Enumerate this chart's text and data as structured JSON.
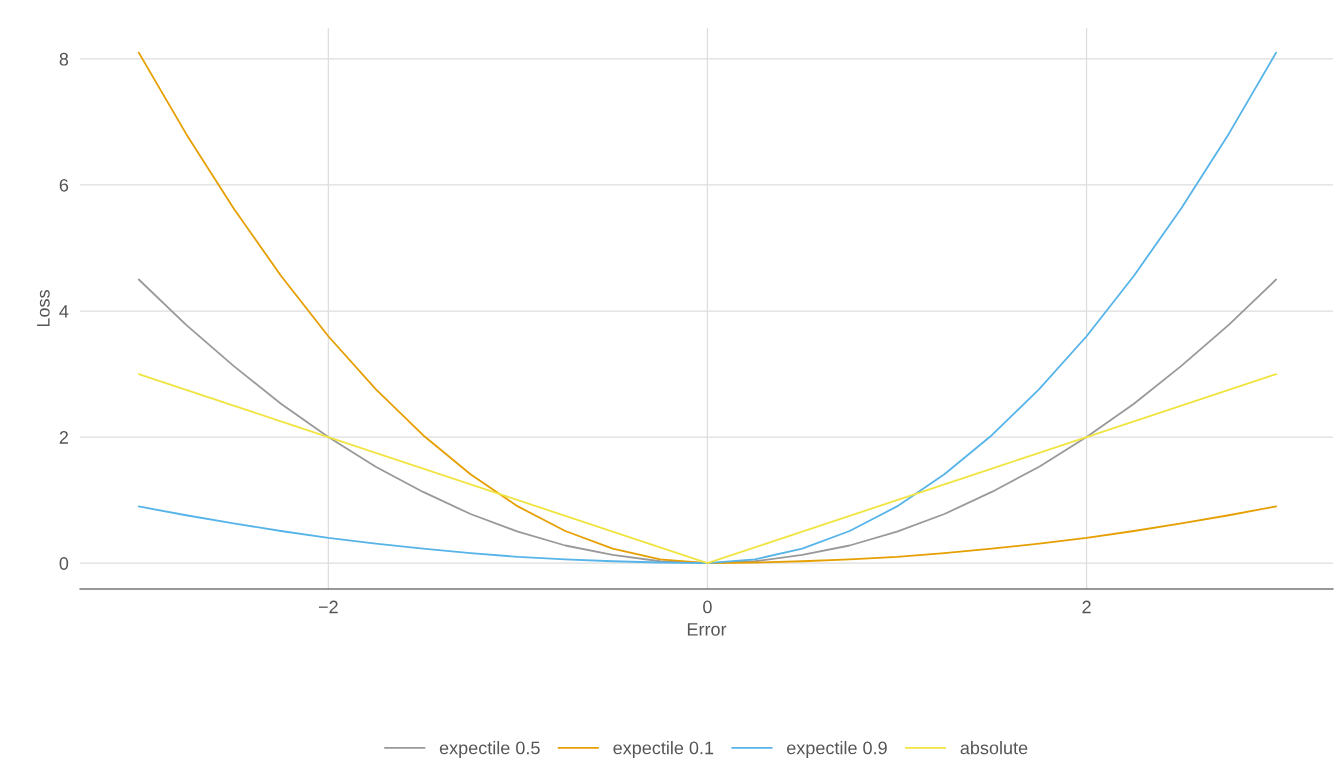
{
  "chart_data": {
    "type": "line",
    "xlabel": "Error",
    "ylabel": "Loss",
    "x": [
      -3,
      -2.75,
      -2.5,
      -2.25,
      -2,
      -1.75,
      -1.5,
      -1.25,
      -1,
      -0.75,
      -0.5,
      -0.25,
      0,
      0.25,
      0.5,
      0.75,
      1,
      1.25,
      1.5,
      1.75,
      2,
      2.25,
      2.5,
      2.75,
      3
    ],
    "series": [
      {
        "name": "expectile 0.5",
        "color": "#999999",
        "values": [
          4.5,
          3.78,
          3.13,
          2.53,
          2,
          1.53,
          1.13,
          0.78,
          0.5,
          0.28,
          0.13,
          0.03,
          0,
          0.03,
          0.13,
          0.28,
          0.5,
          0.78,
          1.13,
          1.53,
          2,
          2.53,
          3.13,
          3.78,
          4.5
        ]
      },
      {
        "name": "expectile 0.1",
        "color": "#e69f00",
        "values": [
          8.1,
          6.81,
          5.63,
          4.56,
          3.6,
          2.76,
          2.03,
          1.41,
          0.9,
          0.51,
          0.23,
          0.06,
          0,
          0.01,
          0.03,
          0.06,
          0.1,
          0.16,
          0.23,
          0.31,
          0.4,
          0.51,
          0.63,
          0.76,
          0.9
        ]
      },
      {
        "name": "expectile 0.9",
        "color": "#56b4e9",
        "values": [
          0.9,
          0.76,
          0.63,
          0.51,
          0.4,
          0.31,
          0.23,
          0.16,
          0.1,
          0.06,
          0.03,
          0.01,
          0,
          0.06,
          0.23,
          0.51,
          0.9,
          1.41,
          2.03,
          2.76,
          3.6,
          4.56,
          5.63,
          6.81,
          8.1
        ]
      },
      {
        "name": "absolute",
        "color": "#f0e442",
        "values": [
          3,
          2.75,
          2.5,
          2.25,
          2,
          1.75,
          1.5,
          1.25,
          1,
          0.75,
          0.5,
          0.25,
          0,
          0.25,
          0.5,
          0.75,
          1,
          1.25,
          1.5,
          1.75,
          2,
          2.25,
          2.5,
          2.75,
          3
        ]
      }
    ],
    "xlim": [
      -3.31,
      3.3
    ],
    "ylim": [
      -0.41,
      8.49
    ],
    "xticks": [
      {
        "value": -2,
        "label": "−2"
      },
      0,
      2
    ],
    "yticks": [
      0,
      2,
      4,
      6,
      8
    ],
    "grid": true,
    "legend": "bottom",
    "line_style": "solid",
    "marker": "none"
  }
}
